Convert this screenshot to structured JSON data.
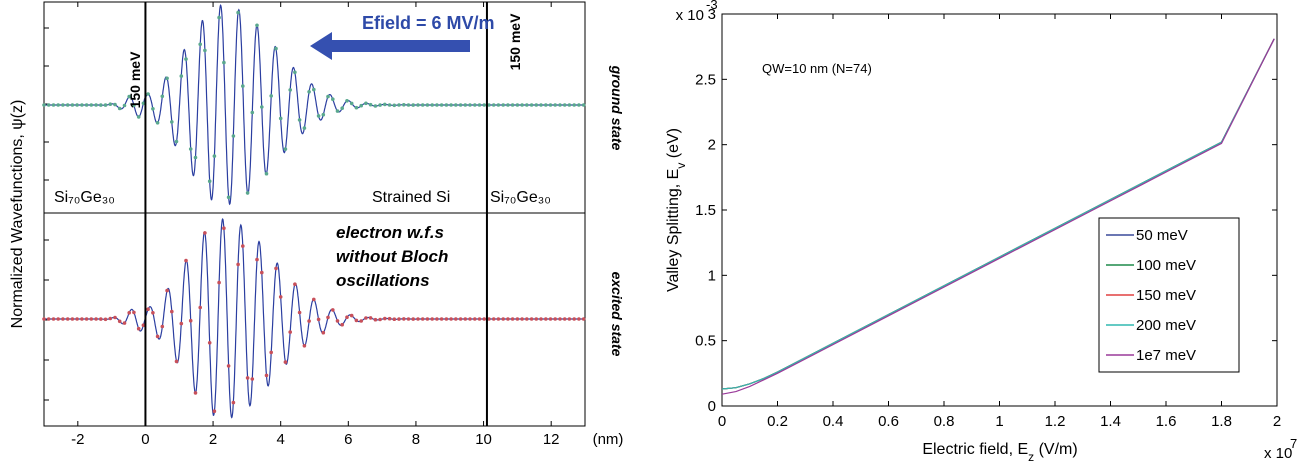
{
  "colors": {
    "wave": "#2b3ea0",
    "ground_marker": "#5aa88e",
    "excited_marker": "#c8505a",
    "efield_arrow": "#3550b0",
    "axis": "#000000"
  },
  "left_panel": {
    "ylabel": "Normalized Wavefunctions, ψ(z)",
    "x_unit": "(nm)",
    "barrier_left_label": "150 meV",
    "barrier_right_label": "150 meV",
    "efield_label": "Efield = 6 MV/m",
    "region_left": "Si₇₀Ge₃₀",
    "region_mid": "Strained Si",
    "region_right": "Si₇₀Ge₃₀",
    "top_state_label": "ground state",
    "bottom_state_label": "excited state",
    "note_lines": [
      "electron w.f.s",
      "without Bloch",
      "oscillations"
    ]
  },
  "chart_data": [
    {
      "type": "line",
      "panel": "left",
      "xlim": [
        -3,
        13
      ],
      "xticks": [
        "-2",
        "0",
        "2",
        "4",
        "6",
        "8",
        "10",
        "12"
      ],
      "xtick_values": [
        -2,
        0,
        2,
        4,
        6,
        8,
        10,
        12
      ],
      "barriers_nm": [
        0,
        10.1
      ],
      "series": [
        {
          "name": "ground state",
          "envelope": {
            "center": 2.3,
            "sigma_left": 1.5,
            "sigma_right": 2.1,
            "amplitude": 1.0
          },
          "leak_left": 0.12,
          "oscillation_period_nm": 0.54,
          "marker_spacing_nm": 0.14
        },
        {
          "name": "excited state",
          "envelope": {
            "center": 2.3,
            "sigma_left": 1.5,
            "sigma_right": 2.1,
            "amplitude": 1.0
          },
          "leak_left": 0.12,
          "oscillation_period_nm": 0.54,
          "marker_spacing_nm": 0.14
        }
      ]
    },
    {
      "type": "line",
      "panel": "right",
      "xlabel": "Electric field, E_z (V/m)",
      "ylabel": "Valley Splitting, E_v (eV)",
      "xlim": [
        0,
        2.0
      ],
      "ylim": [
        0,
        3.0
      ],
      "x_multiplier": "x 10",
      "x_exponent": "7",
      "y_multiplier": "x 10",
      "y_exponent": "-3",
      "xticks": [
        "0",
        "0.2",
        "0.4",
        "0.6",
        "0.8",
        "1",
        "1.2",
        "1.4",
        "1.6",
        "1.8",
        "2"
      ],
      "xtick_values": [
        0,
        0.2,
        0.4,
        0.6,
        0.8,
        1.0,
        1.2,
        1.4,
        1.6,
        1.8,
        2.0
      ],
      "yticks": [
        "0",
        "0.5",
        "1",
        "1.5",
        "2",
        "2.5",
        "3"
      ],
      "ytick_values": [
        0,
        0.5,
        1.0,
        1.5,
        2.0,
        2.5,
        3.0
      ],
      "annotation": "QW=10 nm (N=74)",
      "legend_position": "lower-right",
      "series": [
        {
          "name": "50 meV",
          "color": "#3a4a9a",
          "x": [
            0,
            0.05,
            0.1,
            0.15,
            0.2,
            0.3,
            0.4,
            0.6,
            0.8,
            1.0,
            1.2,
            1.4,
            1.6,
            1.8,
            1.99
          ],
          "y": [
            0.13,
            0.14,
            0.17,
            0.21,
            0.26,
            0.37,
            0.48,
            0.7,
            0.92,
            1.14,
            1.36,
            1.58,
            1.8,
            2.02,
            2.81
          ]
        },
        {
          "name": "100 meV",
          "color": "#1e8a4a",
          "x": [
            0,
            0.05,
            0.1,
            0.15,
            0.2,
            0.3,
            0.4,
            0.6,
            0.8,
            1.0,
            1.2,
            1.4,
            1.6,
            1.8,
            1.99
          ],
          "y": [
            0.13,
            0.14,
            0.17,
            0.21,
            0.26,
            0.37,
            0.48,
            0.7,
            0.92,
            1.14,
            1.36,
            1.58,
            1.8,
            2.02,
            2.81
          ]
        },
        {
          "name": "150 meV",
          "color": "#e04040",
          "x": [
            0,
            0.05,
            0.1,
            0.15,
            0.2,
            0.3,
            0.4,
            0.6,
            0.8,
            1.0,
            1.2,
            1.4,
            1.6,
            1.8,
            1.99
          ],
          "y": [
            0.13,
            0.14,
            0.17,
            0.21,
            0.26,
            0.37,
            0.48,
            0.7,
            0.92,
            1.14,
            1.36,
            1.58,
            1.8,
            2.02,
            2.81
          ]
        },
        {
          "name": "200 meV",
          "color": "#30b8b0",
          "x": [
            0,
            0.05,
            0.1,
            0.15,
            0.2,
            0.3,
            0.4,
            0.6,
            0.8,
            1.0,
            1.2,
            1.4,
            1.6,
            1.8,
            1.99
          ],
          "y": [
            0.13,
            0.14,
            0.17,
            0.21,
            0.26,
            0.37,
            0.48,
            0.7,
            0.92,
            1.14,
            1.36,
            1.58,
            1.8,
            2.02,
            2.81
          ]
        },
        {
          "name": "1e7 meV",
          "color": "#9a3a9a",
          "x": [
            0,
            0.05,
            0.1,
            0.15,
            0.2,
            0.3,
            0.4,
            0.6,
            0.8,
            1.0,
            1.2,
            1.4,
            1.6,
            1.8,
            1.99
          ],
          "y": [
            0.09,
            0.11,
            0.15,
            0.2,
            0.25,
            0.36,
            0.47,
            0.69,
            0.91,
            1.13,
            1.35,
            1.57,
            1.79,
            2.01,
            2.81
          ]
        }
      ]
    }
  ]
}
